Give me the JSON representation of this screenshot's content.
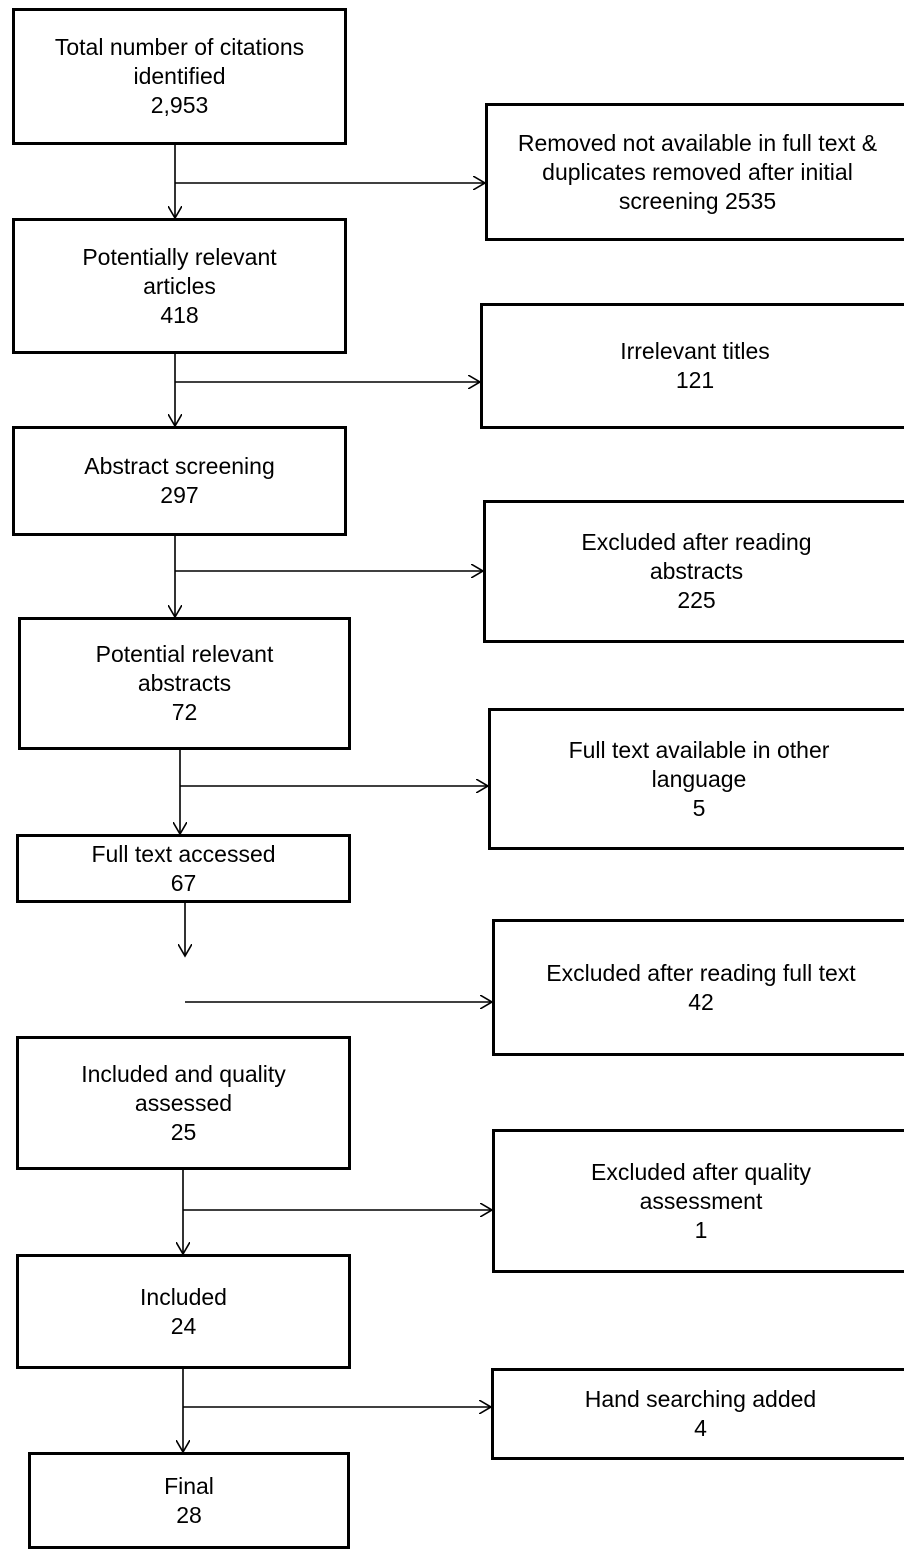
{
  "main_boxes": [
    {
      "label": "Total number of citations identified",
      "value": "2,953"
    },
    {
      "label": "Potentially relevant articles",
      "value": "418"
    },
    {
      "label": "Abstract screening",
      "value": "297"
    },
    {
      "label": "Potential relevant abstracts",
      "value": "72"
    },
    {
      "label": "Full text accessed",
      "value": "67"
    },
    {
      "label": "Included and quality assessed",
      "value": "25"
    },
    {
      "label": "Included",
      "value": "24"
    },
    {
      "label": "Final",
      "value": "28"
    }
  ],
  "side_boxes": [
    {
      "label": "Removed not available in full text & duplicates removed after initial screening 2535",
      "value": ""
    },
    {
      "label": "Irrelevant titles",
      "value": "121"
    },
    {
      "label": "Excluded after reading abstracts",
      "value": "225"
    },
    {
      "label": "Full text available in other language",
      "value": "5"
    },
    {
      "label": "Excluded after reading full text",
      "value": "42"
    },
    {
      "label": "Excluded after quality assessment",
      "value": "1"
    },
    {
      "label": "Hand searching added",
      "value": "4"
    }
  ]
}
